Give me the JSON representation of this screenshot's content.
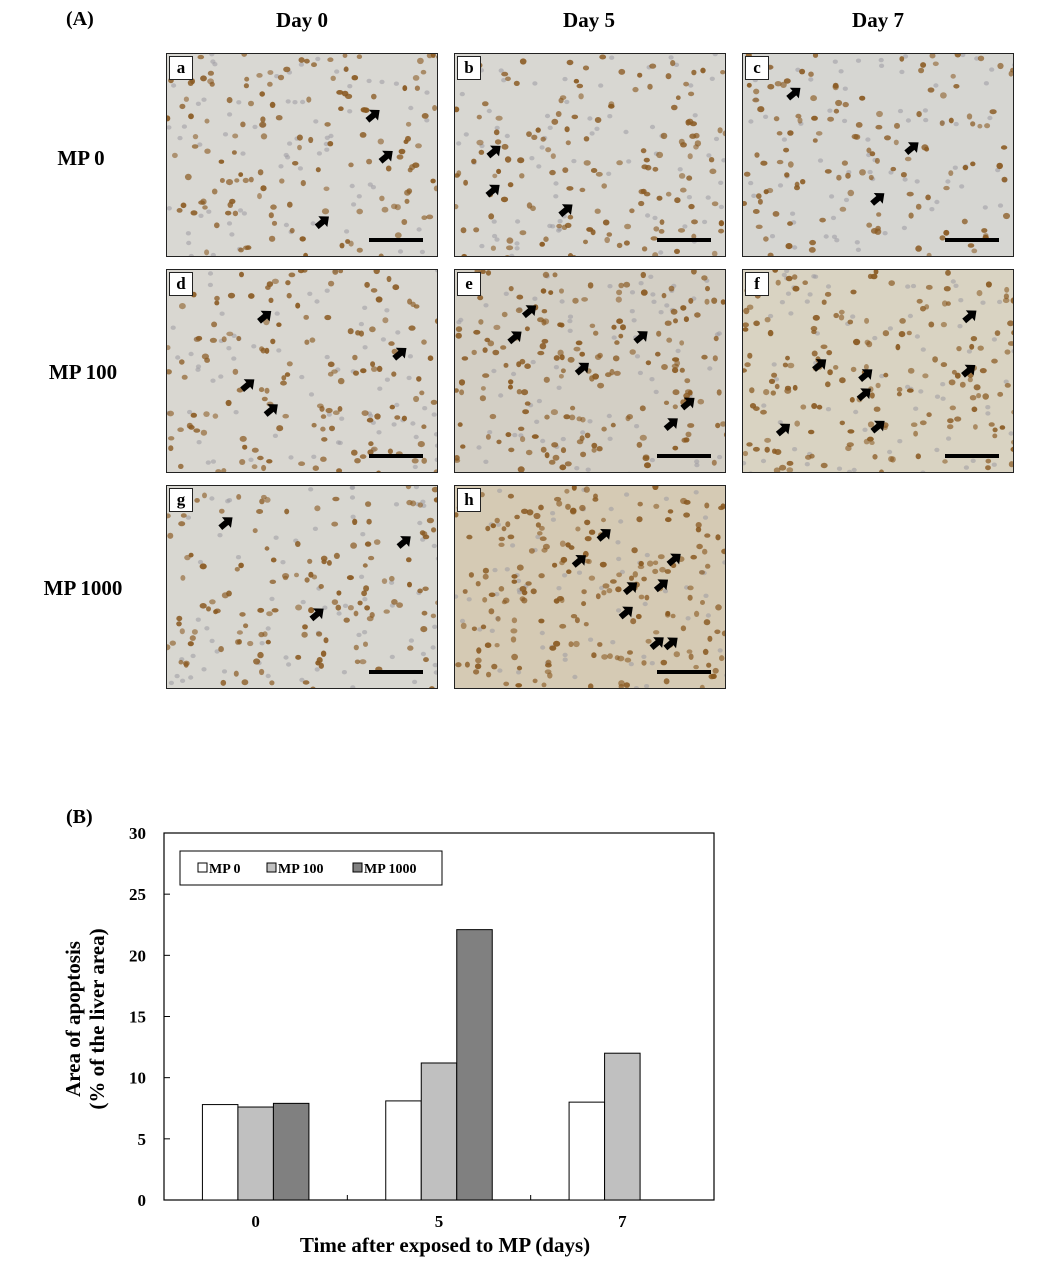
{
  "figure": {
    "panel_a_label": "(A)",
    "panel_b_label": "(B)",
    "columns": [
      "Day 0",
      "Day 5",
      "Day 7"
    ],
    "rows": [
      "MP 0",
      "MP 100",
      "MP 1000"
    ],
    "micrographs": [
      {
        "letter": "a",
        "row": 0,
        "col": 0,
        "tone": "#d9d8d3",
        "density": 0.55,
        "arrows": 3
      },
      {
        "letter": "b",
        "row": 0,
        "col": 1,
        "tone": "#d8d7d2",
        "density": 0.6,
        "arrows": 3
      },
      {
        "letter": "c",
        "row": 0,
        "col": 2,
        "tone": "#d6d6d2",
        "density": 0.45,
        "arrows": 3
      },
      {
        "letter": "d",
        "row": 1,
        "col": 0,
        "tone": "#d9d7d1",
        "density": 0.6,
        "arrows": 4
      },
      {
        "letter": "e",
        "row": 1,
        "col": 1,
        "tone": "#d3cfc5",
        "density": 0.85,
        "arrows": 6
      },
      {
        "letter": "f",
        "row": 1,
        "col": 2,
        "tone": "#d9d3c2",
        "density": 0.8,
        "arrows": 7
      },
      {
        "letter": "g",
        "row": 2,
        "col": 0,
        "tone": "#d8d7d1",
        "density": 0.55,
        "arrows": 3
      },
      {
        "letter": "h",
        "row": 2,
        "col": 1,
        "tone": "#d5cab4",
        "density": 1.0,
        "arrows": 8
      }
    ],
    "nucleus_color": "#8a5a22",
    "background_nucleus_color": "#9d9aa3"
  },
  "chart_data": {
    "type": "bar",
    "categories": [
      "0",
      "5",
      "7"
    ],
    "series": [
      {
        "name": "MP 0",
        "values": [
          7.8,
          8.1,
          8.0
        ],
        "color": "#ffffff"
      },
      {
        "name": "MP 100",
        "values": [
          7.6,
          11.2,
          12.0
        ],
        "color": "#c0c0c0"
      },
      {
        "name": "MP 1000",
        "values": [
          7.9,
          22.1,
          null
        ],
        "color": "#808080"
      }
    ],
    "ylim": [
      0,
      30
    ],
    "yticks": [
      0,
      5,
      10,
      15,
      20,
      25,
      30
    ],
    "xlabel": "Time after exposed to MP (days)",
    "ylabel_line1": "Area of apoptosis",
    "ylabel_line2": "(% of the liver area)",
    "legend_position": "top-left",
    "grid": false
  }
}
